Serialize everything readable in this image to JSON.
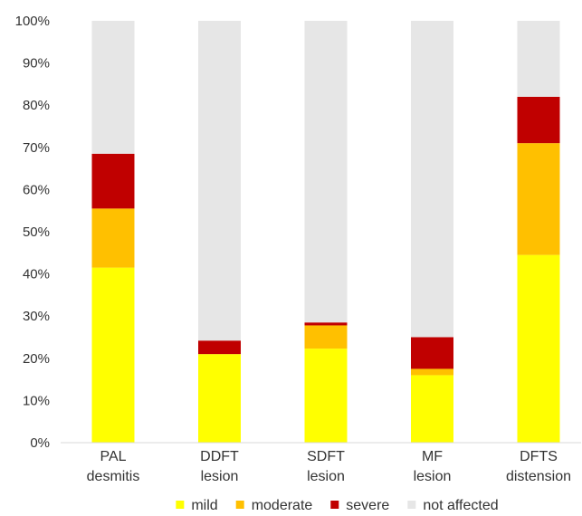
{
  "chart_data": {
    "type": "bar",
    "stacked": true,
    "categories": [
      [
        "PAL",
        "desmitis"
      ],
      [
        "DDFT",
        "lesion"
      ],
      [
        "SDFT",
        "lesion"
      ],
      [
        "MF",
        "lesion"
      ],
      [
        "DFTS",
        "distension"
      ]
    ],
    "series": [
      {
        "name": "mild",
        "color": "#FFFF00",
        "values": [
          41.5,
          21,
          22.3,
          16,
          44.5
        ]
      },
      {
        "name": "moderate",
        "color": "#FFC000",
        "values": [
          14,
          0,
          5.5,
          1.5,
          26.5
        ]
      },
      {
        "name": "severe",
        "color": "#C00000",
        "values": [
          13,
          3.2,
          0.7,
          7.5,
          11
        ]
      },
      {
        "name": "not affected",
        "color": "#E6E6E6",
        "values": [
          31.5,
          75.8,
          71.5,
          75,
          18
        ]
      }
    ],
    "ylim": [
      0,
      100
    ],
    "yticks": [
      0,
      10,
      20,
      30,
      40,
      50,
      60,
      70,
      80,
      90,
      100
    ],
    "ytick_suffix": "%",
    "grid": false,
    "legend_position": "bottom",
    "title": "",
    "xlabel": "",
    "ylabel": ""
  }
}
